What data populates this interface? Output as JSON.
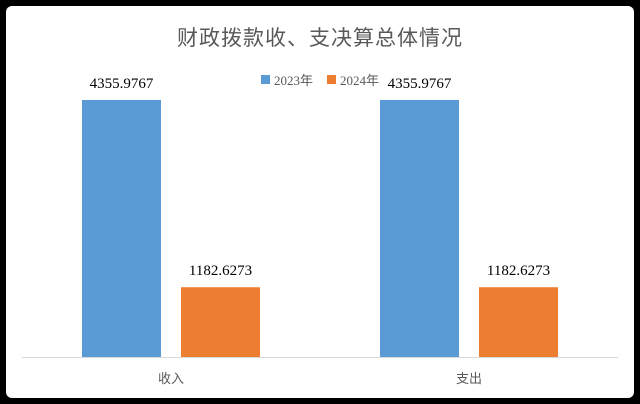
{
  "chart_data": {
    "type": "bar",
    "title": "财政拨款收、支决算总体情况",
    "categories": [
      "收入",
      "支出"
    ],
    "series": [
      {
        "name": "2023年",
        "values": [
          4355.9767,
          4355.9767
        ],
        "labels": [
          "4355.9767",
          "4355.9767"
        ],
        "color": "#5B9BD5"
      },
      {
        "name": "2024年",
        "values": [
          1182.6273,
          1182.6273
        ],
        "labels": [
          "1182.6273",
          "1182.6273"
        ],
        "color": "#ED7D31"
      }
    ],
    "ylim": [
      0,
      5000
    ],
    "grid": false,
    "legend": "top"
  }
}
